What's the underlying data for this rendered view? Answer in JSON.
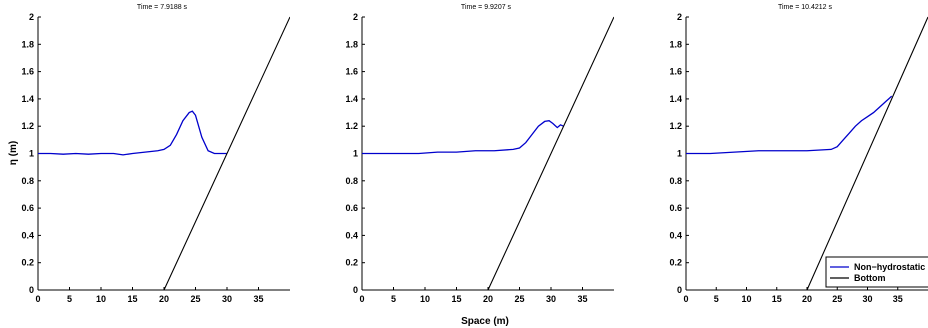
{
  "figure": {
    "xlabel": "Space (m)",
    "ylabel": "η (m)"
  },
  "colors": {
    "surface": "#0000cc",
    "bottom": "#000000"
  },
  "legend": {
    "entries": [
      {
        "label": "Non−hydrostatic",
        "color": "#0000cc"
      },
      {
        "label": "Bottom",
        "color": "#000000"
      }
    ],
    "placement": "bottom-right of third panel"
  },
  "chart_data": [
    {
      "type": "line",
      "title": "Time = 7.9188 s",
      "xlim": [
        0,
        40
      ],
      "ylim": [
        0,
        2
      ],
      "xticks": [
        0,
        5,
        10,
        15,
        20,
        25,
        30,
        35
      ],
      "yticks": [
        0,
        0.2,
        0.4,
        0.6,
        0.8,
        1,
        1.2,
        1.4,
        1.6,
        1.8,
        2
      ],
      "ytick_labels": [
        "0",
        "0.2",
        "0.4",
        "0.6",
        "0.8",
        "1",
        "1.2",
        "1.4",
        "1.6",
        "1.8",
        "2"
      ],
      "series": [
        {
          "key": "surface",
          "x": [
            0,
            2,
            4,
            6,
            8,
            10,
            12,
            13.5,
            15,
            17,
            19,
            20,
            21,
            22,
            23,
            24,
            24.5,
            25,
            26,
            27,
            28,
            29,
            30
          ],
          "y": [
            1.0,
            1.0,
            0.995,
            1.0,
            0.995,
            1.0,
            1.0,
            0.99,
            1.0,
            1.01,
            1.02,
            1.03,
            1.06,
            1.14,
            1.24,
            1.3,
            1.31,
            1.28,
            1.12,
            1.02,
            1.0,
            1.0,
            1.0
          ]
        },
        {
          "key": "bottom",
          "x": [
            0,
            20,
            40
          ],
          "y": [
            0,
            0,
            2
          ]
        }
      ]
    },
    {
      "type": "line",
      "title": "Time = 9.9207 s",
      "xlim": [
        0,
        40
      ],
      "ylim": [
        0,
        2
      ],
      "xticks": [
        0,
        5,
        10,
        15,
        20,
        25,
        30,
        35
      ],
      "yticks": [
        0,
        0.2,
        0.4,
        0.6,
        0.8,
        1,
        1.2,
        1.4,
        1.6,
        1.8,
        2
      ],
      "ytick_labels": [
        "0",
        "0.2",
        "0.4",
        "0.6",
        "0.8",
        "1",
        "1.2",
        "1.4",
        "1.6",
        "1.8",
        "2"
      ],
      "series": [
        {
          "key": "surface",
          "x": [
            0,
            3,
            6,
            9,
            12,
            15,
            18,
            21,
            24,
            25,
            26,
            27,
            28,
            29,
            29.7,
            30.3,
            31,
            31.5,
            32
          ],
          "y": [
            1.0,
            1.0,
            1.0,
            1.0,
            1.01,
            1.01,
            1.02,
            1.02,
            1.03,
            1.04,
            1.08,
            1.14,
            1.2,
            1.235,
            1.24,
            1.22,
            1.19,
            1.21,
            1.2
          ]
        },
        {
          "key": "bottom",
          "x": [
            0,
            20,
            40
          ],
          "y": [
            0,
            0,
            2
          ]
        }
      ]
    },
    {
      "type": "line",
      "title": "Time = 10.4212 s",
      "xlim": [
        0,
        40
      ],
      "ylim": [
        0,
        2
      ],
      "xticks": [
        0,
        5,
        10,
        15,
        20,
        25,
        30,
        35
      ],
      "yticks": [
        0,
        0.2,
        0.4,
        0.6,
        0.8,
        1,
        1.2,
        1.4,
        1.6,
        1.8,
        2
      ],
      "ytick_labels": [
        "0",
        "0.2",
        "0.4",
        "0.6",
        "0.8",
        "1",
        "1.2",
        "1.4",
        "1.6",
        "1.8",
        "2"
      ],
      "series": [
        {
          "key": "surface",
          "x": [
            0,
            4,
            8,
            12,
            16,
            20,
            24,
            25,
            26,
            27,
            28,
            29,
            30,
            31,
            32,
            33,
            34
          ],
          "y": [
            1.0,
            1.0,
            1.01,
            1.02,
            1.02,
            1.02,
            1.03,
            1.05,
            1.1,
            1.15,
            1.2,
            1.24,
            1.27,
            1.3,
            1.34,
            1.38,
            1.42
          ]
        },
        {
          "key": "bottom",
          "x": [
            0,
            20,
            40
          ],
          "y": [
            0,
            0,
            2
          ]
        }
      ]
    }
  ]
}
